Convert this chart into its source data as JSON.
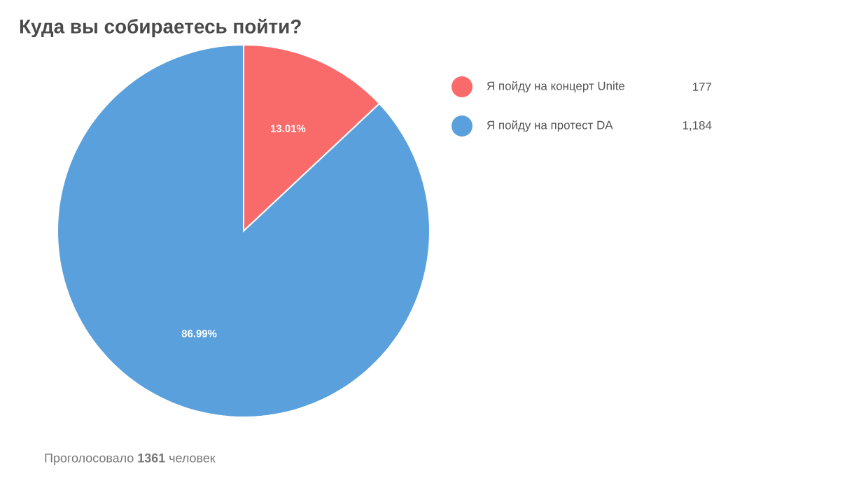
{
  "chart_data": {
    "type": "pie",
    "title": "Куда вы собираетесь пойти?",
    "categories": [
      "Я пойду на концерт Unite",
      "Я пойду на протест DA"
    ],
    "values": [
      13.01,
      86.99
    ],
    "colors": [
      "#f96b6b",
      "#5aa0dc"
    ],
    "value_labels": [
      "13.01%",
      "86.99%"
    ],
    "legend": "right",
    "annotations": [
      "177",
      "1,184",
      "Проголосовало **1361** человек"
    ]
  }
}
